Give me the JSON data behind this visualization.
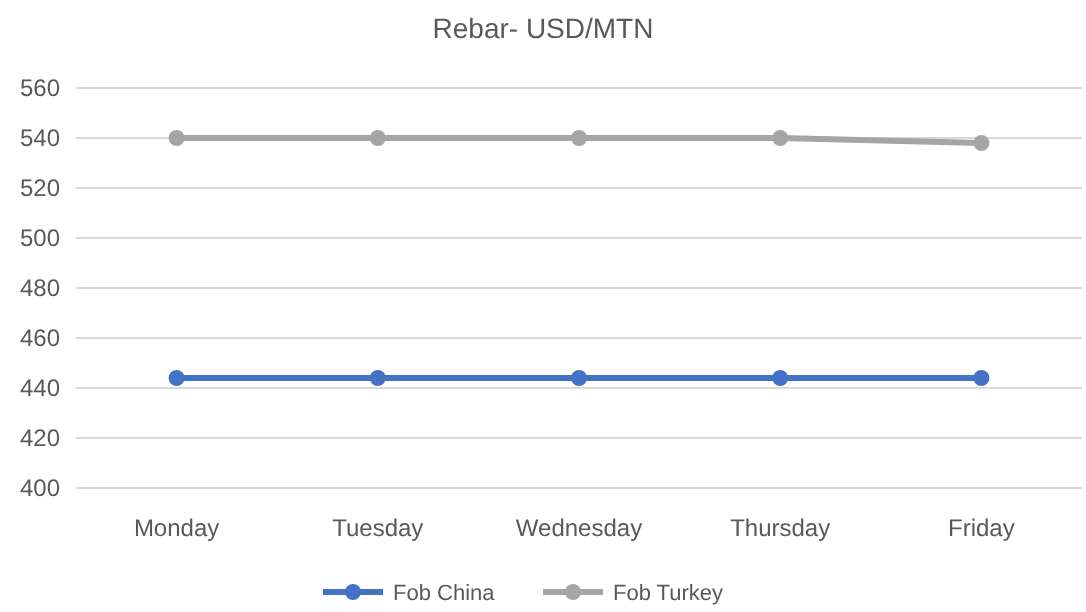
{
  "chart_data": {
    "type": "line",
    "title": "Rebar- USD/MTN",
    "categories": [
      "Monday",
      "Tuesday",
      "Wednesday",
      "Thursday",
      "Friday"
    ],
    "series": [
      {
        "name": "Fob China",
        "color": "#4472c4",
        "values": [
          444,
          444,
          444,
          444,
          444
        ]
      },
      {
        "name": "Fob Turkey",
        "color": "#a5a5a5",
        "values": [
          540,
          540,
          540,
          540,
          538
        ]
      }
    ],
    "ylim": [
      400,
      560
    ],
    "yticks": [
      400,
      420,
      440,
      460,
      480,
      500,
      520,
      540,
      560
    ],
    "grid": "y",
    "legend": "bottom",
    "marker": "circle",
    "line_style": "solid"
  }
}
